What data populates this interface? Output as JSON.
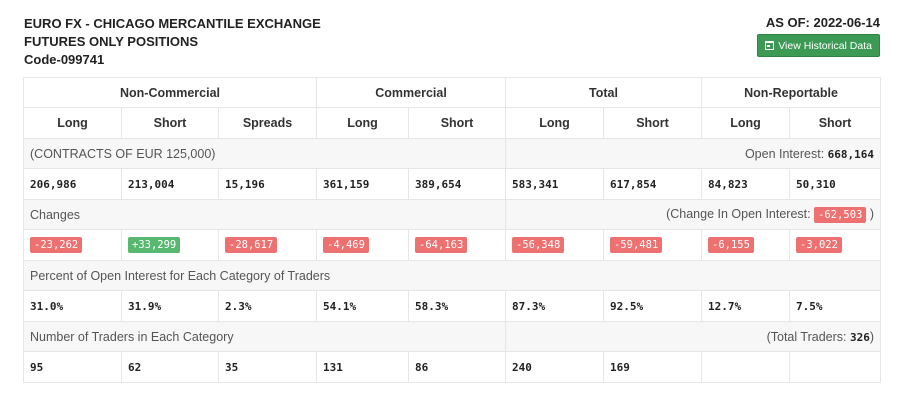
{
  "header": {
    "title_line1": "EURO FX - CHICAGO MERCANTILE EXCHANGE",
    "title_line2": "FUTURES ONLY POSITIONS",
    "code": "Code-099741",
    "as_of": "AS OF: 2022-06-14",
    "historical_button": "View Historical Data",
    "button_icon": "calendar-icon",
    "button_color": "#3c9a55"
  },
  "groups": [
    "Non-Commercial",
    "Commercial",
    "Total",
    "Non-Reportable"
  ],
  "columns": [
    "Long",
    "Short",
    "Spreads",
    "Long",
    "Short",
    "Long",
    "Short",
    "Long",
    "Short"
  ],
  "contracts": {
    "label": "(CONTRACTS OF EUR 125,000)",
    "open_interest_label": "Open Interest:",
    "open_interest_value": "668,164",
    "values": [
      "206,986",
      "213,004",
      "15,196",
      "361,159",
      "389,654",
      "583,341",
      "617,854",
      "84,823",
      "50,310"
    ]
  },
  "changes": {
    "label": "Changes",
    "oi_label": "(Change In Open Interest:",
    "oi_value": "-62,503",
    "oi_close": ")",
    "values": [
      "-23,262",
      "+33,299",
      "-28,617",
      "-4,469",
      "-64,163",
      "-56,348",
      "-59,481",
      "-6,155",
      "-3,022"
    ],
    "negative_color": "#ee7171",
    "positive_color": "#58b86f"
  },
  "percent": {
    "label": "Percent of Open Interest for Each Category of Traders",
    "values": [
      "31.0%",
      "31.9%",
      "2.3%",
      "54.1%",
      "58.3%",
      "87.3%",
      "92.5%",
      "12.7%",
      "7.5%"
    ]
  },
  "traders": {
    "label": "Number of Traders in Each Category",
    "total_label": "(Total Traders:",
    "total_value": "326",
    "total_close": ")",
    "values": [
      "95",
      "62",
      "35",
      "131",
      "86",
      "240",
      "169",
      "",
      ""
    ]
  }
}
